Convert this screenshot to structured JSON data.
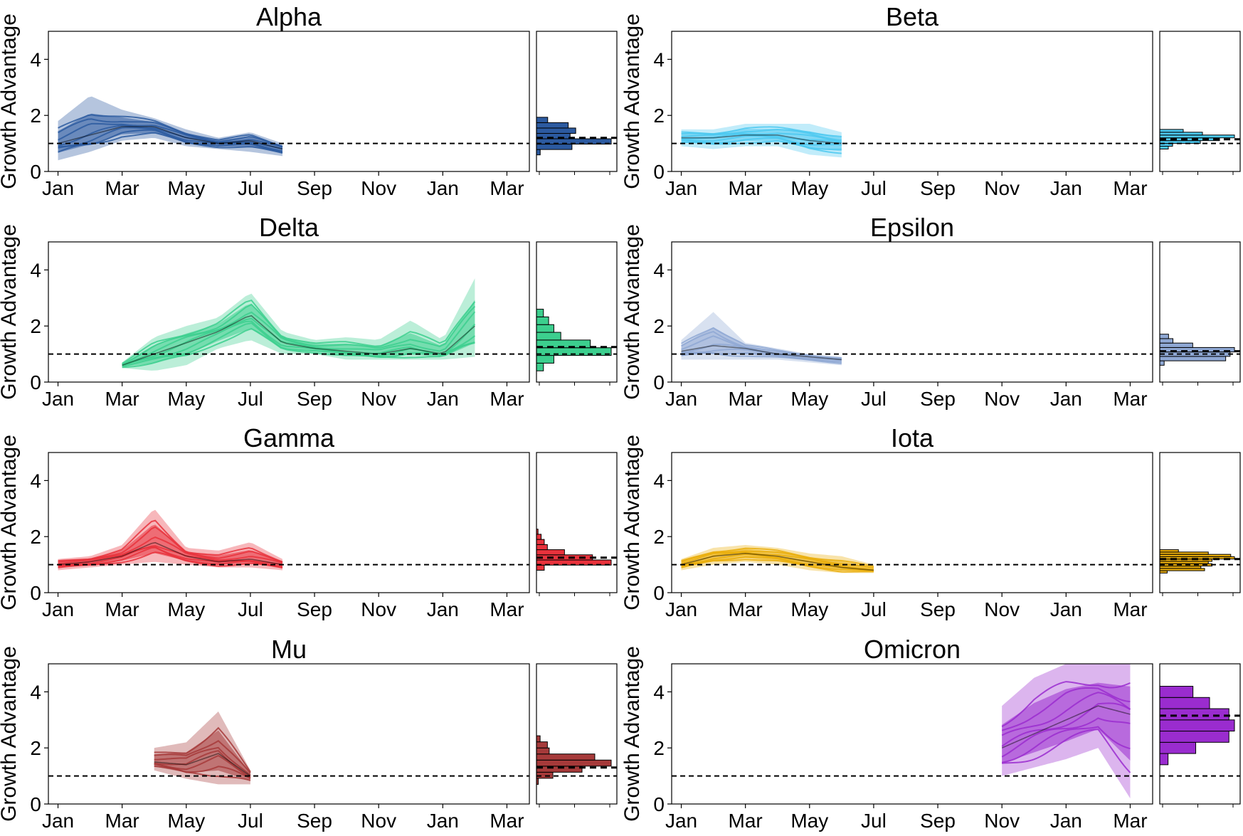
{
  "figure": {
    "ylabel": "Growth Advantage",
    "x_tick_labels": [
      "Jan",
      "Mar",
      "May",
      "Jul",
      "Sep",
      "Nov",
      "Jan",
      "Mar"
    ],
    "y_tick_labels": [
      "0",
      "2",
      "4"
    ],
    "reference_line": 1.0
  },
  "chart_data": [
    {
      "type": "line",
      "title": "Alpha",
      "color": "#2c5aa0",
      "ylim": [
        0,
        5
      ],
      "x": [
        "Jan",
        "Feb",
        "Mar",
        "Apr",
        "May",
        "Jun",
        "Jul",
        "Aug"
      ],
      "median": [
        1.0,
        1.3,
        1.6,
        1.6,
        1.2,
        1.0,
        1.1,
        0.8
      ],
      "lower": [
        0.4,
        0.7,
        1.1,
        1.2,
        0.9,
        0.8,
        0.7,
        0.55
      ],
      "upper": [
        1.8,
        2.7,
        2.2,
        1.9,
        1.5,
        1.2,
        1.4,
        1.0
      ],
      "histogram_mean": 1.2
    },
    {
      "type": "line",
      "title": "Beta",
      "color": "#4cc9f0",
      "ylim": [
        0,
        5
      ],
      "x": [
        "Jan",
        "Feb",
        "Mar",
        "Apr",
        "May",
        "Jun"
      ],
      "median": [
        1.2,
        1.2,
        1.3,
        1.3,
        1.1,
        1.0
      ],
      "lower": [
        0.9,
        0.8,
        0.9,
        0.9,
        0.6,
        0.5
      ],
      "upper": [
        1.5,
        1.5,
        1.7,
        1.7,
        1.7,
        1.4
      ],
      "histogram_mean": 1.15
    },
    {
      "type": "line",
      "title": "Delta",
      "color": "#3ccf8e",
      "ylim": [
        0,
        5
      ],
      "x": [
        "Mar",
        "Apr",
        "May",
        "Jun",
        "Jul",
        "Aug",
        "Sep",
        "Oct",
        "Nov",
        "Dec",
        "Jan",
        "Feb"
      ],
      "median": [
        0.6,
        1.0,
        1.4,
        1.8,
        2.4,
        1.4,
        1.2,
        1.1,
        1.0,
        1.2,
        1.0,
        2.0
      ],
      "lower": [
        0.5,
        0.4,
        0.6,
        1.2,
        1.5,
        1.0,
        1.0,
        0.8,
        0.8,
        0.8,
        0.8,
        0.9
      ],
      "upper": [
        0.7,
        1.6,
        2.0,
        2.3,
        3.2,
        1.8,
        1.5,
        1.6,
        1.5,
        2.2,
        1.5,
        3.7
      ],
      "histogram_mean": 1.25
    },
    {
      "type": "line",
      "title": "Epsilon",
      "color": "#8fa8d4",
      "ylim": [
        0,
        5
      ],
      "x": [
        "Jan",
        "Feb",
        "Mar",
        "Apr",
        "May",
        "Jun"
      ],
      "median": [
        1.1,
        1.3,
        1.2,
        1.0,
        0.9,
        0.8
      ],
      "lower": [
        0.8,
        0.8,
        0.8,
        0.8,
        0.7,
        0.6
      ],
      "upper": [
        1.5,
        2.5,
        1.4,
        1.2,
        1.0,
        0.9
      ],
      "histogram_mean": 1.1
    },
    {
      "type": "line",
      "title": "Gamma",
      "color": "#e8323c",
      "ylim": [
        0,
        5
      ],
      "x": [
        "Jan",
        "Feb",
        "Mar",
        "Apr",
        "May",
        "Jun",
        "Jul",
        "Aug"
      ],
      "median": [
        1.0,
        1.1,
        1.3,
        1.8,
        1.3,
        1.1,
        1.2,
        1.0
      ],
      "lower": [
        0.8,
        0.9,
        1.0,
        1.1,
        1.0,
        0.9,
        0.9,
        0.8
      ],
      "upper": [
        1.2,
        1.3,
        1.7,
        3.0,
        1.6,
        1.5,
        1.8,
        1.2
      ],
      "histogram_mean": 1.25
    },
    {
      "type": "line",
      "title": "Iota",
      "color": "#eaae0c",
      "ylim": [
        0,
        5
      ],
      "x": [
        "Jan",
        "Feb",
        "Mar",
        "Apr",
        "May",
        "Jun",
        "Jul"
      ],
      "median": [
        1.0,
        1.3,
        1.4,
        1.3,
        1.1,
        0.9,
        0.8
      ],
      "lower": [
        0.8,
        1.0,
        1.1,
        1.0,
        0.8,
        0.7,
        0.7
      ],
      "upper": [
        1.2,
        1.6,
        1.7,
        1.6,
        1.4,
        1.3,
        1.0
      ],
      "histogram_mean": 1.2
    },
    {
      "type": "line",
      "title": "Mu",
      "color": "#a63a3a",
      "ylim": [
        0,
        5
      ],
      "x": [
        "Apr",
        "May",
        "Jun",
        "Jul"
      ],
      "median": [
        1.5,
        1.4,
        1.8,
        1.0
      ],
      "lower": [
        1.2,
        0.9,
        0.7,
        0.7
      ],
      "upper": [
        2.0,
        2.2,
        3.3,
        1.2
      ],
      "histogram_mean": 1.3
    },
    {
      "type": "line",
      "title": "Omicron",
      "color": "#9a2ccf",
      "ylim": [
        0,
        5
      ],
      "x": [
        "Nov",
        "Dec",
        "Jan",
        "Feb",
        "Mar"
      ],
      "median": [
        2.0,
        2.5,
        3.0,
        3.5,
        3.2
      ],
      "lower": [
        1.0,
        1.3,
        1.6,
        2.0,
        0.2
      ],
      "upper": [
        3.5,
        4.5,
        5.0,
        5.0,
        5.0
      ],
      "histogram_mean": 3.15
    }
  ]
}
